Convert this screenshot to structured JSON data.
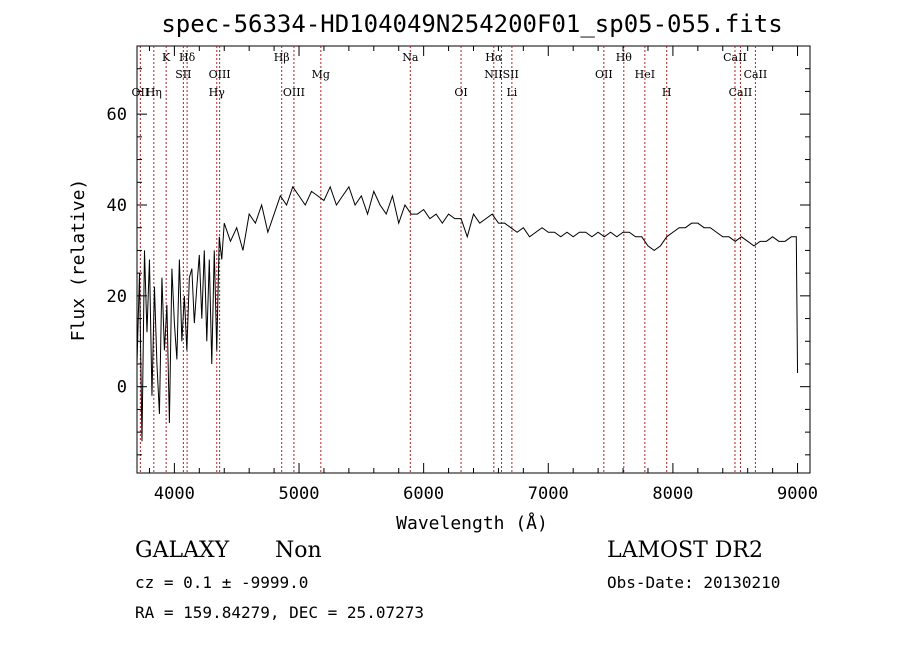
{
  "chart_data": {
    "type": "line",
    "title": "spec-56334-HD104049N254200F01_sp05-055.fits",
    "xlabel": "Wavelength (Å)",
    "ylabel": "Flux (relative)",
    "xlim": [
      3700,
      9100
    ],
    "ylim": [
      -19,
      75
    ],
    "x_ticks": [
      4000,
      5000,
      6000,
      7000,
      8000,
      9000
    ],
    "y_ticks": [
      0,
      20,
      40,
      60
    ],
    "grid": false,
    "series": [
      {
        "line_color": "#000000",
        "x": [
          3700,
          3720,
          3740,
          3760,
          3780,
          3800,
          3820,
          3840,
          3860,
          3880,
          3900,
          3920,
          3940,
          3960,
          3980,
          4000,
          4020,
          4040,
          4060,
          4080,
          4100,
          4120,
          4140,
          4160,
          4180,
          4200,
          4220,
          4240,
          4260,
          4280,
          4300,
          4320,
          4340,
          4360,
          4380,
          4400,
          4450,
          4500,
          4550,
          4600,
          4650,
          4700,
          4750,
          4800,
          4850,
          4900,
          4950,
          5000,
          5050,
          5100,
          5150,
          5200,
          5250,
          5300,
          5350,
          5400,
          5450,
          5500,
          5550,
          5600,
          5650,
          5700,
          5750,
          5800,
          5850,
          5900,
          5950,
          6000,
          6050,
          6100,
          6150,
          6200,
          6250,
          6300,
          6350,
          6400,
          6450,
          6500,
          6550,
          6600,
          6650,
          6700,
          6750,
          6800,
          6850,
          6900,
          6950,
          7000,
          7050,
          7100,
          7150,
          7200,
          7250,
          7300,
          7350,
          7400,
          7450,
          7500,
          7550,
          7600,
          7650,
          7700,
          7750,
          7800,
          7850,
          7900,
          7950,
          8000,
          8050,
          8100,
          8150,
          8200,
          8250,
          8300,
          8350,
          8400,
          8450,
          8500,
          8550,
          8600,
          8650,
          8700,
          8750,
          8800,
          8850,
          8900,
          8950,
          8990,
          9000
        ],
        "y": [
          5,
          25,
          -12,
          30,
          12,
          28,
          -2,
          22,
          5,
          -6,
          24,
          8,
          18,
          -8,
          26,
          14,
          6,
          28,
          10,
          20,
          8,
          24,
          26,
          14,
          22,
          29,
          15,
          30,
          10,
          28,
          5,
          30,
          8,
          33,
          28,
          36,
          32,
          35,
          30,
          38,
          36,
          40,
          34,
          38,
          42,
          40,
          44,
          42,
          40,
          43,
          42,
          41,
          44,
          40,
          42,
          44,
          40,
          42,
          38,
          43,
          40,
          38,
          42,
          36,
          40,
          38,
          38,
          39,
          37,
          38,
          36,
          38,
          37,
          37,
          33,
          38,
          36,
          37,
          38,
          36,
          36,
          35,
          34,
          35,
          33,
          34,
          35,
          34,
          34,
          33,
          34,
          33,
          34,
          34,
          33,
          34,
          33,
          34,
          33,
          34,
          34,
          33,
          33,
          31,
          30,
          31,
          33,
          34,
          35,
          35,
          36,
          36,
          35,
          35,
          34,
          33,
          33,
          32,
          33,
          32,
          31,
          32,
          32,
          33,
          32,
          32,
          33,
          33,
          3
        ]
      }
    ],
    "line_markers": [
      {
        "label": "OII",
        "x": 3727,
        "row": 3
      },
      {
        "label": "Hη",
        "x": 3835,
        "row": 3
      },
      {
        "label": "K",
        "x": 3934,
        "row": 1
      },
      {
        "label": "Hδ",
        "x": 4102,
        "row": 1
      },
      {
        "label": "SII",
        "x": 4072,
        "row": 2
      },
      {
        "label": "OIII",
        "x": 4363,
        "row": 2
      },
      {
        "label": "Hγ",
        "x": 4340,
        "row": 3
      },
      {
        "label": "Hβ",
        "x": 4861,
        "row": 1
      },
      {
        "label": "Mg",
        "x": 5175,
        "row": 2
      },
      {
        "label": "OIII",
        "x": 4959,
        "row": 3
      },
      {
        "label": "Na",
        "x": 5893,
        "row": 1
      },
      {
        "label": "OI",
        "x": 6300,
        "row": 3
      },
      {
        "label": "Hα",
        "x": 6563,
        "row": 1
      },
      {
        "label": "NIISII",
        "x": 6625,
        "row": 2
      },
      {
        "label": "Li",
        "x": 6708,
        "row": 3
      },
      {
        "label": "OII",
        "x": 7446,
        "row": 2
      },
      {
        "label": "Hθ",
        "x": 7606,
        "row": 1
      },
      {
        "label": "HeI",
        "x": 7775,
        "row": 2
      },
      {
        "label": "H",
        "x": 7950,
        "row": 3
      },
      {
        "label": "CaII",
        "x": 8498,
        "row": 1
      },
      {
        "label": "CaII",
        "x": 8662,
        "row": 2
      },
      {
        "label": "CaII",
        "x": 8542,
        "row": 3
      }
    ],
    "marker_color": "#b22222"
  },
  "footer": {
    "object_class": "GALAXY",
    "subclass": "Non",
    "survey": "LAMOST DR2",
    "cz": "cz = 0.1 ± -9999.0",
    "obs_date": "Obs-Date: 20130210",
    "coords": "RA = 159.84279, DEC =  25.07273"
  }
}
